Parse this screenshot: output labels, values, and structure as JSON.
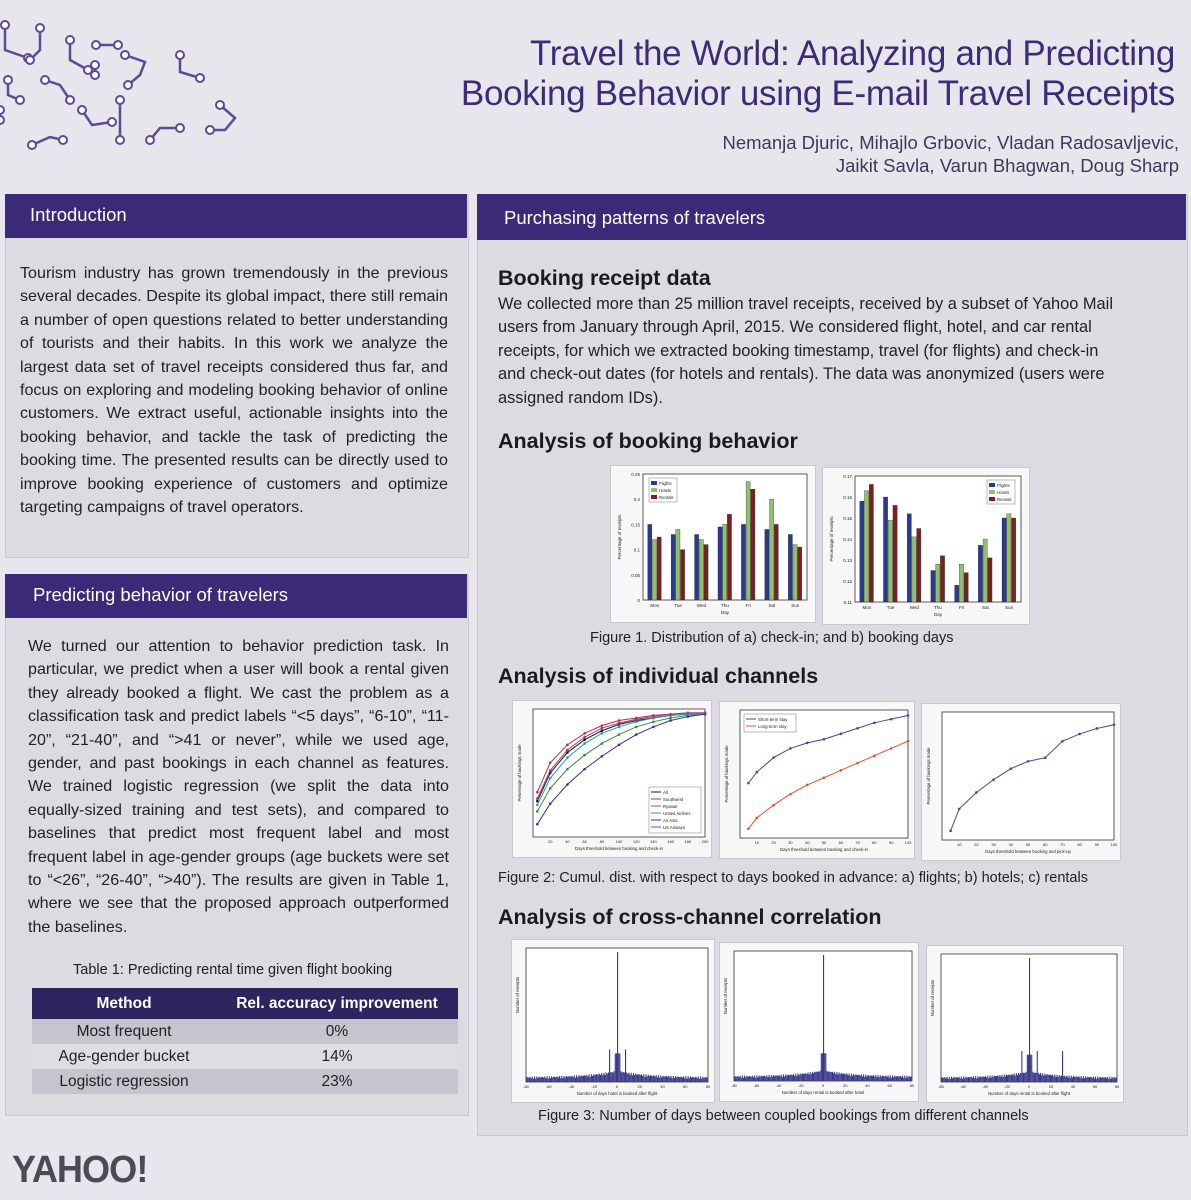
{
  "title": {
    "line1": "Travel the World: Analyzing and Predicting",
    "line2": "Booking Behavior using E-mail Travel Receipts"
  },
  "authors": {
    "line1": "Nemanja Djuric, Mihajlo Grbovic, Vladan Radosavljevic,",
    "line2": "Jaikit Savla, Varun Bhagwan, Doug Sharp"
  },
  "introduction": {
    "heading": "Introduction",
    "text": "Tourism industry has grown tremendously in the previous several decades. Despite its global impact, there still remain a number of open questions related to better understanding of tourists and their habits. In this work we analyze the largest data set of travel receipts considered thus far, and focus on exploring and modeling booking behavior of online customers. We extract useful, actionable insights into the booking behavior, and tackle the task of predicting the booking time. The presented results can be directly used to improve booking experience of customers and optimize targeting campaigns of travel operators."
  },
  "predicting": {
    "heading": "Predicting behavior of travelers",
    "text": "We turned our attention to behavior prediction task. In particular, we predict when a user will book a rental given they already booked a flight. We cast the problem as a classification task and predict labels “<5 days”, “6-10”, “11-20”, “21-40”, and “>41 or never”, while we used age, gender, and past bookings in each channel as features. We trained logistic regression (we split the data into equally-sized training and test sets), and compared to baselines that predict most frequent label and most frequent label in age-gender groups (age buckets were set to “<26”, “26-40”, “>40”). The results are given in Table 1, where we see that the proposed approach outperformed the baselines.",
    "table_caption": "Table 1: Predicting rental time given flight booking",
    "table_headers": [
      "Method",
      "Rel. accuracy improvement"
    ],
    "table_rows": [
      [
        "Most frequent",
        "0%"
      ],
      [
        "Age-gender bucket",
        "14%"
      ],
      [
        "Logistic regression",
        "23%"
      ]
    ]
  },
  "purchasing": {
    "heading": "Purchasing patterns of travelers",
    "receipt_heading": "Booking receipt data",
    "receipt_text": "We collected more than 25 million travel receipts, received by a subset of Yahoo Mail users from January through April, 2015. We considered flight, hotel, and car rental receipts, for which we extracted booking timestamp, travel (for flights) and check-in and check-out dates (for hotels and rentals). The data was anonymized (users were assigned random IDs).",
    "booking_heading": "Analysis of booking behavior",
    "fig1_caption": "Figure 1. Distribution of a) check-in; and b) booking days",
    "channels_heading": "Analysis of individual channels",
    "fig2_caption": "Figure 2: Cumul. dist. with respect to days booked in advance: a) flights; b) hotels; c) rentals",
    "cross_heading": "Analysis of cross-channel correlation",
    "fig3_caption": "Figure 3: Number of days between coupled bookings from different channels"
  },
  "logo": "YAHOO!",
  "colors": {
    "brand_purple": "#3b2a78",
    "flights": "#2b3a8f",
    "hotels": "#8fc06a",
    "rentals": "#7a2020"
  },
  "chart_data": [
    {
      "type": "bar",
      "categories": [
        "Mon",
        "Tue",
        "Wed",
        "Thu",
        "Fri",
        "Sat",
        "Sun"
      ],
      "xlabel": "Day",
      "ylabel": "Percentage of receipts",
      "ylim": [
        0,
        0.25
      ],
      "yticks": [
        "0",
        "0.05",
        "0.1",
        "0.15",
        "0.2",
        "0.25"
      ],
      "legend_position": "top-left",
      "series": [
        {
          "name": "Flights",
          "values": [
            0.15,
            0.13,
            0.13,
            0.145,
            0.15,
            0.14,
            0.13
          ]
        },
        {
          "name": "Hotels",
          "values": [
            0.12,
            0.14,
            0.12,
            0.15,
            0.235,
            0.2,
            0.11
          ]
        },
        {
          "name": "Rentals",
          "values": [
            0.125,
            0.1,
            0.11,
            0.17,
            0.22,
            0.15,
            0.105
          ]
        }
      ]
    },
    {
      "type": "bar",
      "categories": [
        "Mon",
        "Tue",
        "Wed",
        "Thu",
        "Fri",
        "Sat",
        "Sun"
      ],
      "xlabel": "Day",
      "ylabel": "Percentage of receipts",
      "ylim": [
        0.11,
        0.17
      ],
      "yticks": [
        "0.11",
        "0.12",
        "0.13",
        "0.14",
        "0.15",
        "0.16",
        "0.17"
      ],
      "legend_position": "top-right",
      "series": [
        {
          "name": "Flights",
          "values": [
            0.158,
            0.16,
            0.152,
            0.125,
            0.118,
            0.137,
            0.15
          ]
        },
        {
          "name": "Hotels",
          "values": [
            0.163,
            0.149,
            0.141,
            0.128,
            0.128,
            0.14,
            0.152
          ]
        },
        {
          "name": "Rentals",
          "values": [
            0.166,
            0.156,
            0.145,
            0.132,
            0.124,
            0.131,
            0.15
          ]
        }
      ]
    },
    {
      "type": "line",
      "xlabel": "Days threshold between booking and check-in",
      "ylabel": "Percentage of bookings made",
      "xlim": [
        0,
        200
      ],
      "ylim": [
        0,
        1
      ],
      "xticks": [
        "20",
        "40",
        "60",
        "80",
        "100",
        "120",
        "140",
        "160",
        "180",
        "200"
      ],
      "x": [
        5,
        20,
        40,
        60,
        80,
        100,
        120,
        140,
        160,
        180,
        200
      ],
      "legend_position": "bottom-right",
      "series": [
        {
          "name": "All",
          "values": [
            0.28,
            0.5,
            0.66,
            0.76,
            0.83,
            0.88,
            0.91,
            0.93,
            0.95,
            0.96,
            0.97
          ]
        },
        {
          "name": "Southwest",
          "values": [
            0.35,
            0.58,
            0.72,
            0.81,
            0.87,
            0.91,
            0.93,
            0.95,
            0.96,
            0.97,
            0.97
          ]
        },
        {
          "name": "Ryanair",
          "values": [
            0.2,
            0.38,
            0.53,
            0.64,
            0.73,
            0.8,
            0.86,
            0.9,
            0.93,
            0.95,
            0.96
          ]
        },
        {
          "name": "United Airlines",
          "values": [
            0.25,
            0.46,
            0.62,
            0.73,
            0.81,
            0.86,
            0.9,
            0.93,
            0.95,
            0.96,
            0.97
          ]
        },
        {
          "name": "Air Asia",
          "values": [
            0.1,
            0.26,
            0.41,
            0.53,
            0.63,
            0.72,
            0.8,
            0.86,
            0.91,
            0.94,
            0.96
          ]
        },
        {
          "name": "US Airways",
          "values": [
            0.3,
            0.52,
            0.68,
            0.78,
            0.85,
            0.89,
            0.92,
            0.94,
            0.96,
            0.97,
            0.97
          ]
        }
      ]
    },
    {
      "type": "line",
      "xlabel": "Days threshold between booking and check-in",
      "ylabel": "Percentage of bookings made",
      "xlim": [
        0,
        100
      ],
      "ylim": [
        0.3,
        1
      ],
      "xticks": [
        "10",
        "20",
        "30",
        "40",
        "50",
        "60",
        "70",
        "80",
        "90",
        "100"
      ],
      "x": [
        5,
        10,
        20,
        30,
        40,
        50,
        60,
        70,
        80,
        90,
        100
      ],
      "legend_position": "top-left",
      "series": [
        {
          "name": "Short-term stay",
          "values": [
            0.6,
            0.66,
            0.74,
            0.79,
            0.82,
            0.84,
            0.87,
            0.9,
            0.93,
            0.95,
            0.97
          ]
        },
        {
          "name": "Long-term stay",
          "values": [
            0.35,
            0.41,
            0.48,
            0.54,
            0.59,
            0.63,
            0.67,
            0.71,
            0.75,
            0.79,
            0.83
          ]
        }
      ]
    },
    {
      "type": "line",
      "xlabel": "Days threshold between booking and pick-up",
      "ylabel": "Percentage of bookings made",
      "xlim": [
        0,
        100
      ],
      "ylim": [
        0.3,
        1
      ],
      "xticks": [
        "10",
        "20",
        "30",
        "40",
        "50",
        "60",
        "70",
        "80",
        "90",
        "100"
      ],
      "x": [
        5,
        10,
        20,
        30,
        40,
        50,
        60,
        70,
        80,
        90,
        100
      ],
      "series": [
        {
          "values": [
            0.35,
            0.47,
            0.56,
            0.63,
            0.69,
            0.73,
            0.75,
            0.84,
            0.88,
            0.91,
            0.93
          ]
        }
      ]
    },
    {
      "type": "bar",
      "xlabel": "Number of days hotel is booked after flight",
      "ylabel": "Number of receipts",
      "xlim": [
        -80,
        80
      ],
      "xticks": [
        "-80",
        "-60",
        "-40",
        "-20",
        "0",
        "20",
        "40",
        "60",
        "80"
      ],
      "peak_x": 0,
      "secondary_peaks": [
        -7,
        7
      ]
    },
    {
      "type": "bar",
      "xlabel": "Number of days rental is booked after hotel",
      "ylabel": "Number of receipts",
      "xlim": [
        -80,
        80
      ],
      "xticks": [
        "-80",
        "-60",
        "-40",
        "-20",
        "0",
        "20",
        "40",
        "60",
        "80"
      ],
      "peak_x": 0,
      "secondary_peaks": []
    },
    {
      "type": "bar",
      "xlabel": "Number of days rental is booked after flight",
      "ylabel": "Number of receipts",
      "xlim": [
        -80,
        80
      ],
      "xticks": [
        "-80",
        "-60",
        "-40",
        "-20",
        "0",
        "20",
        "40",
        "60",
        "80"
      ],
      "peak_x": 0,
      "secondary_peaks": [
        -7,
        7,
        30
      ]
    }
  ]
}
